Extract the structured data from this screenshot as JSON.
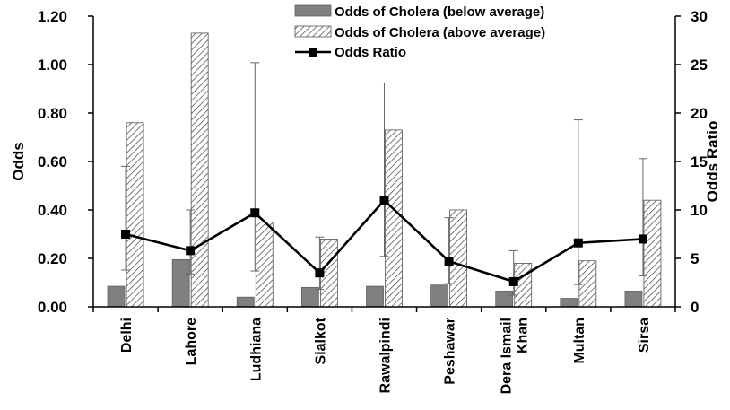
{
  "chart_data": {
    "type": "bar",
    "categories": [
      "Delhi",
      "Lahore",
      "Ludhiana",
      "Sialkot",
      "Rawalpindi",
      "Peshawar",
      "Dera Ismail Khan",
      "Multan",
      "Sirsa"
    ],
    "category_lines": [
      [
        "Delhi"
      ],
      [
        "Lahore"
      ],
      [
        "Ludhiana"
      ],
      [
        "Sialkot"
      ],
      [
        "Rawalpindi"
      ],
      [
        "Peshawar"
      ],
      [
        "Dera Ismail",
        "Khan"
      ],
      [
        "Multan"
      ],
      [
        "Sirsa"
      ]
    ],
    "series": [
      {
        "name": "Odds of Cholera (below average)",
        "kind": "bar",
        "axis": "left",
        "fill": "#808080",
        "values": [
          0.085,
          0.195,
          0.04,
          0.08,
          0.085,
          0.09,
          0.065,
          0.035,
          0.065
        ]
      },
      {
        "name": "Odds of Cholera (above average)",
        "kind": "bar",
        "axis": "left",
        "fill": "hatched",
        "values": [
          0.76,
          1.13,
          0.35,
          0.28,
          0.73,
          0.4,
          0.18,
          0.19,
          0.44
        ]
      },
      {
        "name": "Odds Ratio",
        "kind": "line",
        "axis": "right",
        "color": "#000000",
        "marker": "square",
        "values": [
          7.5,
          5.8,
          9.7,
          3.5,
          11.0,
          4.7,
          2.6,
          6.6,
          7.0
        ],
        "error_low": [
          3.8,
          3.4,
          3.7,
          1.8,
          5.2,
          2.4,
          1.2,
          2.3,
          3.2
        ],
        "error_high": [
          14.5,
          10.0,
          25.2,
          7.2,
          23.1,
          9.2,
          5.8,
          19.3,
          15.3
        ]
      }
    ],
    "ylabel": "Odds",
    "ylabel_right": "Odds Ratio",
    "ylim": [
      0,
      1.2
    ],
    "ylim_right": [
      0,
      30
    ],
    "yticks": [
      "0.00",
      "0.20",
      "0.40",
      "0.60",
      "0.80",
      "1.00",
      "1.20"
    ],
    "yticks_right": [
      "0",
      "5",
      "10",
      "15",
      "20",
      "25",
      "30"
    ],
    "grid": false,
    "legend": "top-center"
  }
}
